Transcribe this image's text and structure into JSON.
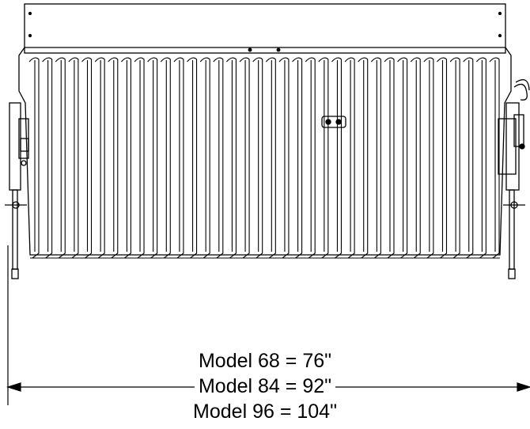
{
  "dimensions": {
    "models": [
      {
        "text": "Model 68 = 76\""
      },
      {
        "text": "Model 84 = 92\""
      },
      {
        "text": "Model 96 = 104\""
      }
    ]
  },
  "colors": {
    "line": "#000000",
    "background": "#ffffff"
  },
  "icons": [
    "arrow-left-icon",
    "arrow-right-icon"
  ]
}
